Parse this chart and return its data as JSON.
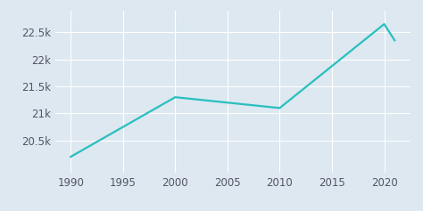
{
  "years": [
    1990,
    2000,
    2010,
    2020,
    2021
  ],
  "population": [
    20200,
    21300,
    21100,
    22650,
    22350
  ],
  "line_color": "#2abfbf",
  "background_color": "#dde8f0",
  "grid_color": "#ffffff",
  "ylim": [
    19900,
    22900
  ],
  "xlim": [
    1988.5,
    2022.5
  ],
  "yticks": [
    20500,
    21000,
    21500,
    22000,
    22500
  ],
  "ytick_labels": [
    "20.5k",
    "21k",
    "21.5k",
    "22k",
    "22.5k"
  ],
  "xticks": [
    1990,
    1995,
    2000,
    2005,
    2010,
    2015,
    2020
  ],
  "line_width": 1.6,
  "tick_fontsize": 8.5
}
